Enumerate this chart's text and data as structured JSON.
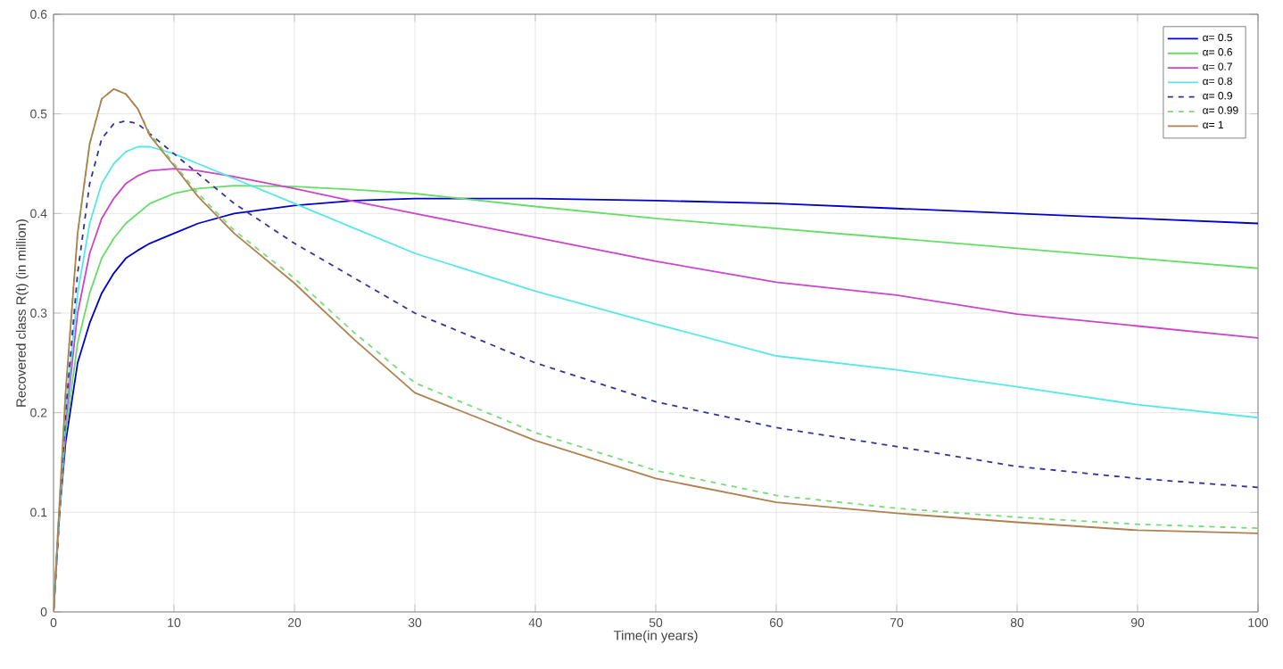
{
  "chart_data": {
    "type": "line",
    "xlabel": "Time(in years)",
    "ylabel": "Recovered class R(t) (in million)",
    "x": [
      0,
      0.5,
      1,
      2,
      3,
      4,
      5,
      6,
      7,
      8,
      10,
      12,
      15,
      20,
      25,
      30,
      40,
      50,
      60,
      70,
      80,
      90,
      100
    ],
    "xlim": [
      0,
      100
    ],
    "ylim": [
      0,
      0.6
    ],
    "xticks": [
      0,
      10,
      20,
      30,
      40,
      50,
      60,
      70,
      80,
      90,
      100
    ],
    "yticks": [
      0,
      0.1,
      0.2,
      0.3,
      0.4,
      0.5,
      0.6
    ],
    "grid": true,
    "legend": "top right",
    "marker": "none",
    "series": [
      {
        "name": "α= 0.5",
        "color": "#0000cc",
        "line_style": "solid",
        "values": [
          0,
          0.1,
          0.17,
          0.25,
          0.29,
          0.32,
          0.34,
          0.355,
          0.363,
          0.37,
          0.38,
          0.39,
          0.4,
          0.408,
          0.413,
          0.415,
          0.415,
          0.413,
          0.41,
          0.405,
          0.4,
          0.395,
          0.39
        ]
      },
      {
        "name": "α= 0.6",
        "color": "#66dd66",
        "line_style": "solid",
        "values": [
          0,
          0.1,
          0.18,
          0.27,
          0.32,
          0.355,
          0.375,
          0.39,
          0.4,
          0.41,
          0.42,
          0.425,
          0.428,
          0.427,
          0.424,
          0.42,
          0.407,
          0.395,
          0.385,
          0.375,
          0.365,
          0.355,
          0.345
        ]
      },
      {
        "name": "α= 0.7",
        "color": "#cc44cc",
        "line_style": "solid",
        "values": [
          0,
          0.1,
          0.19,
          0.3,
          0.36,
          0.395,
          0.415,
          0.43,
          0.438,
          0.443,
          0.445,
          0.443,
          0.437,
          0.425,
          0.412,
          0.4,
          0.376,
          0.352,
          0.331,
          0.318,
          0.299,
          0.287,
          0.275
        ]
      },
      {
        "name": "α= 0.8",
        "color": "#55e8e8",
        "line_style": "solid",
        "values": [
          0,
          0.1,
          0.2,
          0.32,
          0.39,
          0.43,
          0.45,
          0.462,
          0.467,
          0.467,
          0.46,
          0.45,
          0.435,
          0.41,
          0.385,
          0.36,
          0.322,
          0.289,
          0.257,
          0.243,
          0.226,
          0.208,
          0.195
        ]
      },
      {
        "name": "α= 0.9",
        "color": "#333399",
        "line_style": "dashed",
        "values": [
          0,
          0.1,
          0.2,
          0.34,
          0.43,
          0.475,
          0.49,
          0.493,
          0.49,
          0.48,
          0.46,
          0.44,
          0.41,
          0.37,
          0.335,
          0.3,
          0.25,
          0.211,
          0.185,
          0.166,
          0.146,
          0.134,
          0.125
        ]
      },
      {
        "name": "α= 0.99",
        "color": "#77dd77",
        "line_style": "dashed",
        "values": [
          0,
          0.11,
          0.22,
          0.38,
          0.47,
          0.515,
          0.525,
          0.52,
          0.505,
          0.48,
          0.45,
          0.42,
          0.383,
          0.335,
          0.28,
          0.23,
          0.18,
          0.142,
          0.117,
          0.104,
          0.095,
          0.088,
          0.084
        ]
      },
      {
        "name": "α= 1",
        "color": "#b08050",
        "line_style": "solid",
        "values": [
          0,
          0.11,
          0.22,
          0.38,
          0.47,
          0.515,
          0.525,
          0.52,
          0.505,
          0.478,
          0.448,
          0.417,
          0.38,
          0.33,
          0.273,
          0.22,
          0.172,
          0.134,
          0.11,
          0.099,
          0.09,
          0.082,
          0.079
        ]
      }
    ]
  }
}
